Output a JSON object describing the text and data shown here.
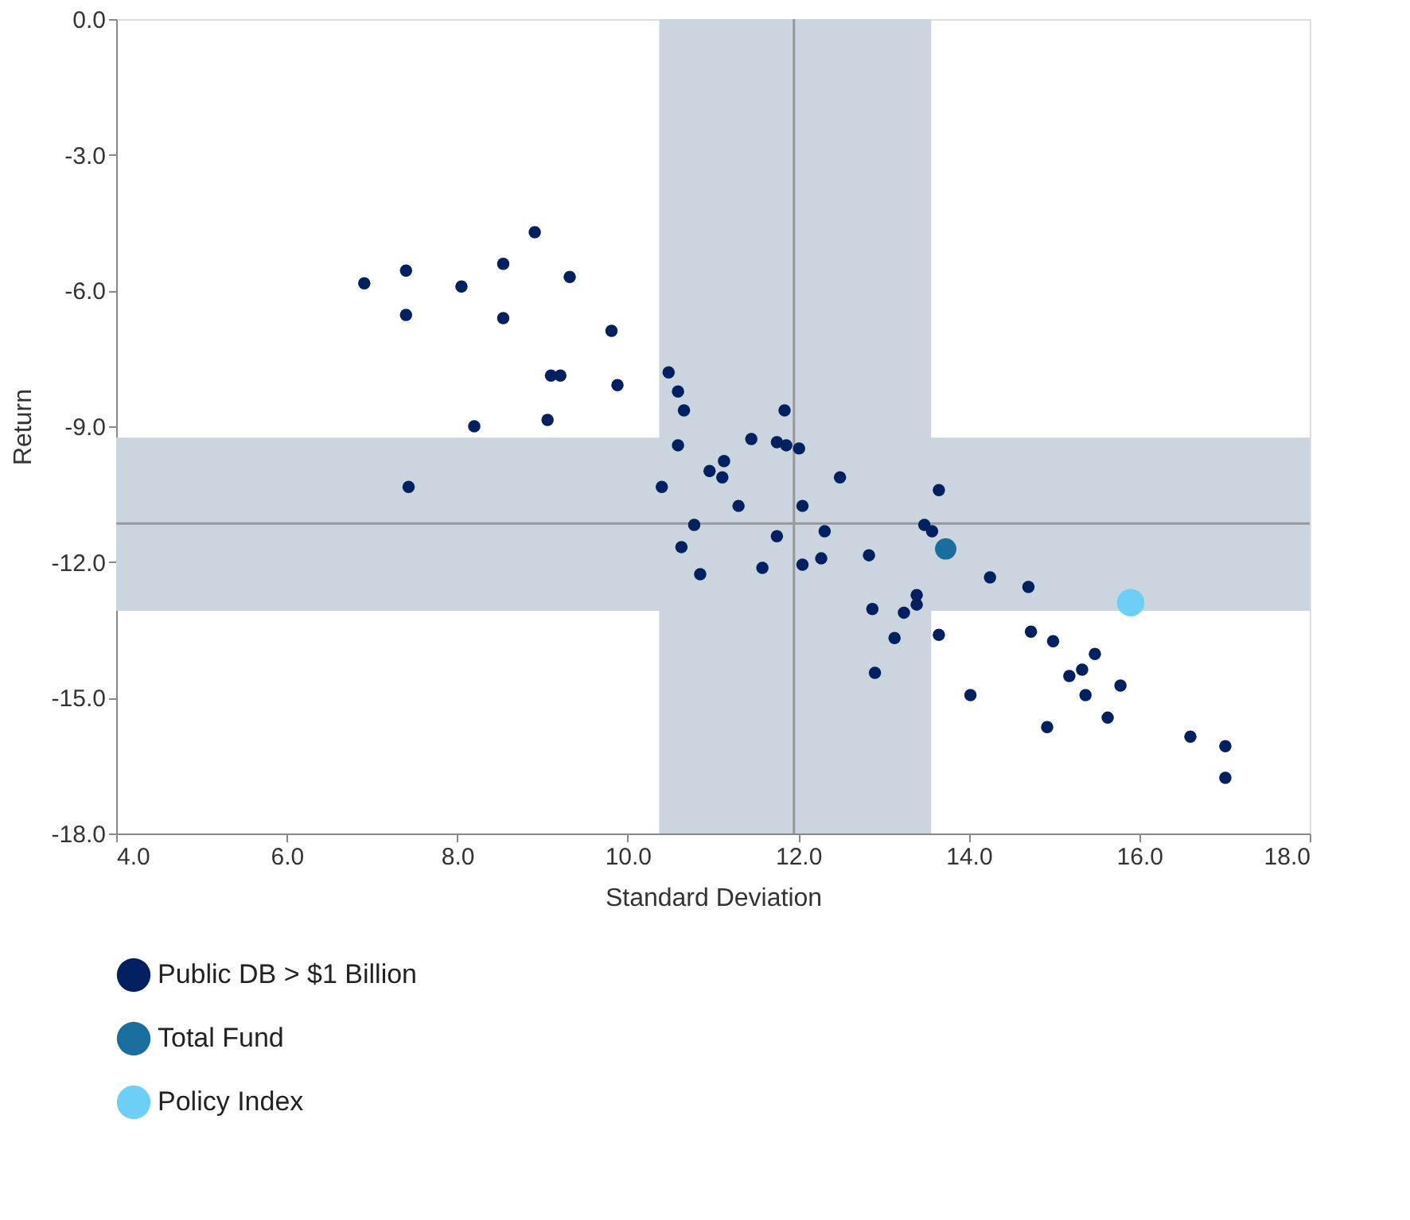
{
  "chart_data": {
    "type": "scatter",
    "xlabel": "Standard Deviation",
    "ylabel": "Return",
    "xlim": [
      4,
      18
    ],
    "ylim": [
      -18,
      0
    ],
    "xticks": [
      {
        "value": 4,
        "label": "4.0"
      },
      {
        "value": 6,
        "label": "6.0"
      },
      {
        "value": 8,
        "label": "8.0"
      },
      {
        "value": 10,
        "label": "10.0"
      },
      {
        "value": 12,
        "label": "12.0"
      },
      {
        "value": 14,
        "label": "14.0"
      },
      {
        "value": 16,
        "label": "16.0"
      },
      {
        "value": 18,
        "label": "18.0"
      }
    ],
    "yticks": [
      {
        "value": -18,
        "label": "-18.0"
      },
      {
        "value": -15,
        "label": "-15.0"
      },
      {
        "value": -12,
        "label": "-12.0"
      },
      {
        "value": -9,
        "label": "-9.0"
      },
      {
        "value": -6,
        "label": "-6.0"
      },
      {
        "value": -3,
        "label": "-3.0"
      },
      {
        "value": 0,
        "label": "0.0"
      }
    ],
    "grid": false,
    "legend": "bottom",
    "marker": "circle",
    "bands": [
      {
        "axis": "x",
        "from": 10.37,
        "to": 13.56,
        "color": "#cbd5df"
      },
      {
        "axis": "y",
        "from": -9.25,
        "to": -13.08,
        "color": "#cbd5df"
      }
    ],
    "ref_lines": [
      {
        "axis": "x",
        "value": 11.95,
        "color": "#999999"
      },
      {
        "axis": "y",
        "value": -11.15,
        "color": "#999999"
      }
    ],
    "series": [
      {
        "name": "Public DB > $1 Billion",
        "color": "#002060",
        "x": [
          6.91,
          7.4,
          7.4,
          8.05,
          8.54,
          8.54,
          8.91,
          9.32,
          9.81,
          9.1,
          9.21,
          9.88,
          9.06,
          8.2,
          7.43,
          10.48,
          10.59,
          10.66,
          11.84,
          10.59,
          11.45,
          11.75,
          11.86,
          12.01,
          12.49,
          10.96,
          11.13,
          11.11,
          10.4,
          11.3,
          12.05,
          13.65,
          10.78,
          13.48,
          13.57,
          11.75,
          12.31,
          10.63,
          11.58,
          12.05,
          12.27,
          12.83,
          10.85,
          14.25,
          14.7,
          13.39,
          13.39,
          12.87,
          13.24,
          13.13,
          13.65,
          14.73,
          14.99,
          15.18,
          15.33,
          15.48,
          15.78,
          15.37,
          14.02,
          12.9,
          14.92,
          15.63,
          16.6,
          17.01,
          17.01
        ],
        "values": [
          -5.84,
          -5.56,
          -6.54,
          -5.91,
          -5.41,
          -6.61,
          -4.71,
          -5.7,
          -6.89,
          -7.88,
          -7.88,
          -8.09,
          -8.86,
          -9.0,
          -10.34,
          -7.81,
          -8.23,
          -8.65,
          -8.65,
          -9.42,
          -9.28,
          -9.35,
          -9.42,
          -9.49,
          -10.13,
          -9.99,
          -9.77,
          -10.13,
          -10.34,
          -10.76,
          -10.76,
          -10.41,
          -11.18,
          -11.18,
          -11.32,
          -11.43,
          -11.32,
          -11.67,
          -12.13,
          -12.06,
          -11.92,
          -11.85,
          -12.27,
          -12.34,
          -12.55,
          -12.73,
          -12.94,
          -13.04,
          -13.12,
          -13.68,
          -13.61,
          -13.54,
          -13.75,
          -14.52,
          -14.38,
          -14.03,
          -14.73,
          -14.94,
          -14.94,
          -14.45,
          -15.65,
          -15.44,
          -15.86,
          -16.07,
          -16.77
        ]
      },
      {
        "name": "Total Fund",
        "color": "#1a6e9e",
        "x": [
          13.73
        ],
        "values": [
          -11.71
        ]
      },
      {
        "name": "Policy Index",
        "color": "#6dcff6",
        "x": [
          15.9
        ],
        "values": [
          -12.9
        ]
      }
    ]
  }
}
